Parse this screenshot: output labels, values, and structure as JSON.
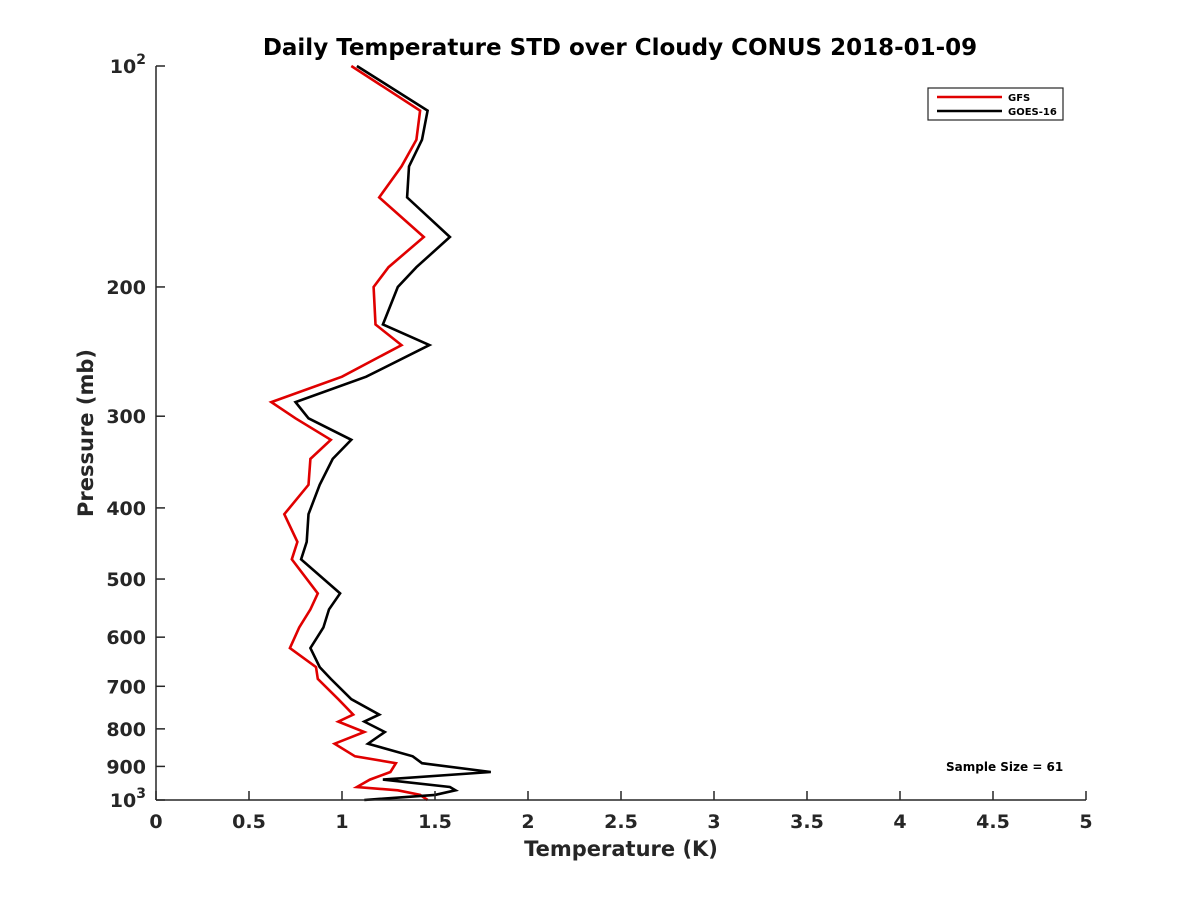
{
  "chart_data": {
    "type": "line",
    "title": "Daily Temperature STD over Cloudy CONUS 2018-01-09",
    "xlabel": "Temperature (K)",
    "ylabel": "Pressure (mb)",
    "xlim": [
      0,
      5
    ],
    "ylim": [
      100,
      1000
    ],
    "y_scale": "log",
    "y_reversed": true,
    "x_ticks": [
      "0",
      "0.5",
      "1",
      "1.5",
      "2",
      "2.5",
      "3",
      "3.5",
      "4",
      "4.5",
      "5"
    ],
    "y_ticks": [
      {
        "value": 100,
        "base": "10",
        "exp": "2"
      },
      {
        "value": 200,
        "label": "200"
      },
      {
        "value": 300,
        "label": "300"
      },
      {
        "value": 400,
        "label": "400"
      },
      {
        "value": 500,
        "label": "500"
      },
      {
        "value": 600,
        "label": "600"
      },
      {
        "value": 700,
        "label": "700"
      },
      {
        "value": 800,
        "label": "800"
      },
      {
        "value": 900,
        "label": "900"
      },
      {
        "value": 1000,
        "base": "10",
        "exp": "3"
      }
    ],
    "grid": false,
    "legend_position": "top-right",
    "annotation": "Sample Size = 61",
    "series": [
      {
        "name": "GFS",
        "color": "#e00000",
        "points": [
          [
            1.05,
            100
          ],
          [
            1.42,
            115
          ],
          [
            1.4,
            126
          ],
          [
            1.32,
            137
          ],
          [
            1.2,
            151
          ],
          [
            1.44,
            171
          ],
          [
            1.25,
            188
          ],
          [
            1.17,
            200
          ],
          [
            1.18,
            225
          ],
          [
            1.32,
            240
          ],
          [
            1.0,
            265
          ],
          [
            0.62,
            287
          ],
          [
            0.75,
            302
          ],
          [
            0.94,
            323
          ],
          [
            0.83,
            343
          ],
          [
            0.82,
            372
          ],
          [
            0.69,
            408
          ],
          [
            0.76,
            445
          ],
          [
            0.73,
            470
          ],
          [
            0.87,
            523
          ],
          [
            0.83,
            550
          ],
          [
            0.77,
            582
          ],
          [
            0.72,
            621
          ],
          [
            0.86,
            659
          ],
          [
            0.87,
            684
          ],
          [
            0.98,
            729
          ],
          [
            1.06,
            765
          ],
          [
            0.98,
            782
          ],
          [
            1.12,
            808
          ],
          [
            0.96,
            838
          ],
          [
            1.07,
            872
          ],
          [
            1.29,
            891
          ],
          [
            1.26,
            916
          ],
          [
            1.15,
            938
          ],
          [
            1.08,
            960
          ],
          [
            1.3,
            970
          ],
          [
            1.42,
            984
          ],
          [
            1.46,
            1000
          ]
        ]
      },
      {
        "name": "GOES-16",
        "color": "#000000",
        "points": [
          [
            1.08,
            100
          ],
          [
            1.46,
            115
          ],
          [
            1.43,
            126
          ],
          [
            1.36,
            137
          ],
          [
            1.35,
            151
          ],
          [
            1.58,
            171
          ],
          [
            1.4,
            188
          ],
          [
            1.3,
            200
          ],
          [
            1.22,
            225
          ],
          [
            1.47,
            240
          ],
          [
            1.13,
            265
          ],
          [
            0.75,
            287
          ],
          [
            0.82,
            302
          ],
          [
            1.05,
            323
          ],
          [
            0.95,
            343
          ],
          [
            0.88,
            372
          ],
          [
            0.82,
            408
          ],
          [
            0.81,
            445
          ],
          [
            0.78,
            470
          ],
          [
            0.99,
            523
          ],
          [
            0.93,
            550
          ],
          [
            0.9,
            582
          ],
          [
            0.83,
            621
          ],
          [
            0.88,
            659
          ],
          [
            0.94,
            684
          ],
          [
            1.05,
            729
          ],
          [
            1.2,
            765
          ],
          [
            1.12,
            782
          ],
          [
            1.23,
            808
          ],
          [
            1.14,
            838
          ],
          [
            1.38,
            872
          ],
          [
            1.43,
            891
          ],
          [
            1.8,
            916
          ],
          [
            1.22,
            938
          ],
          [
            1.58,
            960
          ],
          [
            1.61,
            970
          ],
          [
            1.5,
            984
          ],
          [
            1.12,
            1000
          ]
        ]
      }
    ]
  }
}
